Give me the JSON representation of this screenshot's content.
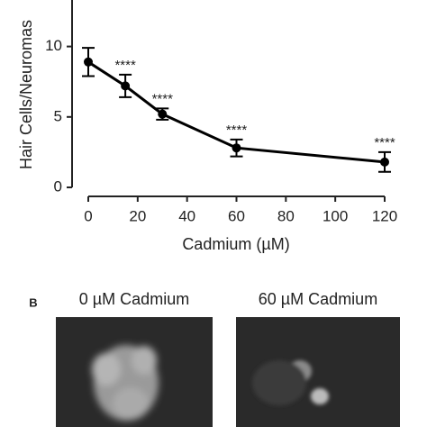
{
  "chart_data": {
    "type": "line",
    "x": [
      0,
      15,
      30,
      60,
      120
    ],
    "values": [
      8.9,
      7.2,
      5.2,
      2.8,
      1.8
    ],
    "errors": [
      1.0,
      0.8,
      0.4,
      0.6,
      0.7
    ],
    "point_labels": [
      null,
      "****",
      "****",
      "****",
      "****"
    ],
    "color": "#000000",
    "xlabel": "Cadmium (µM)",
    "ylabel": "Hair Cells/Neuromas",
    "xlim": [
      0,
      120
    ],
    "xticks": [
      0,
      20,
      40,
      60,
      80,
      100,
      120
    ],
    "ylim": [
      0,
      13.3
    ],
    "yticks": [
      0,
      5,
      10
    ]
  },
  "panel_b": {
    "label": "B",
    "titles": [
      "0 µM Cadmium",
      "60 µM Cadmium"
    ]
  }
}
